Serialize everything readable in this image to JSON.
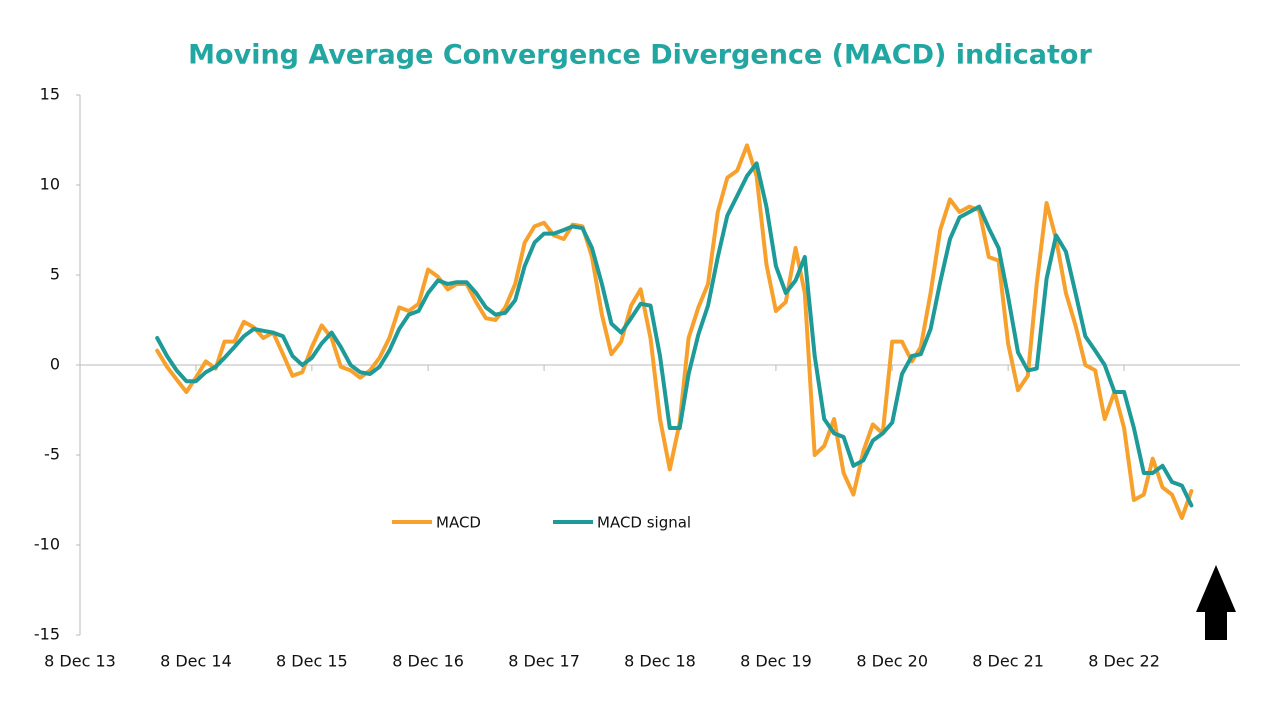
{
  "chart_data": {
    "type": "line",
    "title": "Moving Average Convergence Divergence (MACD) indicator",
    "x": [
      "2014-08-08",
      "2014-09-08",
      "2014-10-08",
      "2014-11-08",
      "2014-12-08",
      "2015-01-08",
      "2015-02-08",
      "2015-03-08",
      "2015-04-08",
      "2015-05-08",
      "2015-06-08",
      "2015-07-08",
      "2015-08-08",
      "2015-09-08",
      "2015-10-08",
      "2015-11-08",
      "2015-12-08",
      "2016-01-08",
      "2016-02-08",
      "2016-03-08",
      "2016-04-08",
      "2016-05-08",
      "2016-06-08",
      "2016-07-08",
      "2016-08-08",
      "2016-09-08",
      "2016-10-08",
      "2016-11-08",
      "2016-12-08",
      "2017-01-08",
      "2017-02-08",
      "2017-03-08",
      "2017-04-08",
      "2017-05-08",
      "2017-06-08",
      "2017-07-08",
      "2017-08-08",
      "2017-09-08",
      "2017-10-08",
      "2017-11-08",
      "2017-12-08",
      "2018-01-08",
      "2018-02-08",
      "2018-03-08",
      "2018-04-08",
      "2018-05-08",
      "2018-06-08",
      "2018-07-08",
      "2018-08-08",
      "2018-09-08",
      "2018-10-08",
      "2018-11-08",
      "2018-12-08",
      "2019-01-08",
      "2019-02-08",
      "2019-03-08",
      "2019-04-08",
      "2019-05-08",
      "2019-06-08",
      "2019-07-08",
      "2019-08-08",
      "2019-09-08",
      "2019-10-08",
      "2019-11-08",
      "2019-12-08",
      "2020-01-08",
      "2020-02-08",
      "2020-03-08",
      "2020-04-08",
      "2020-05-08",
      "2020-06-08",
      "2020-07-08",
      "2020-08-08",
      "2020-09-08",
      "2020-10-08",
      "2020-11-08",
      "2020-12-08",
      "2021-01-08",
      "2021-02-08",
      "2021-03-08",
      "2021-04-08",
      "2021-05-08",
      "2021-06-08",
      "2021-07-08",
      "2021-08-08",
      "2021-09-08",
      "2021-10-08",
      "2021-11-08",
      "2021-12-08",
      "2022-01-08",
      "2022-02-08",
      "2022-03-08",
      "2022-04-08",
      "2022-05-08",
      "2022-06-08",
      "2022-07-08",
      "2022-08-08",
      "2022-09-08",
      "2022-10-08",
      "2022-11-08",
      "2022-12-08",
      "2023-01-08",
      "2023-02-08",
      "2023-03-08",
      "2023-04-08",
      "2023-05-08",
      "2023-06-08",
      "2023-07-08"
    ],
    "series": [
      {
        "name": "MACD",
        "color": "#f7a02c",
        "values": [
          0.8,
          -0.1,
          -0.8,
          -1.5,
          -0.7,
          0.2,
          -0.2,
          1.3,
          1.3,
          2.4,
          2.1,
          1.5,
          1.8,
          0.6,
          -0.6,
          -0.4,
          1.0,
          2.2,
          1.5,
          -0.1,
          -0.3,
          -0.7,
          -0.3,
          0.4,
          1.5,
          3.2,
          3.0,
          3.4,
          5.3,
          4.9,
          4.2,
          4.5,
          4.5,
          3.5,
          2.6,
          2.5,
          3.2,
          4.5,
          6.8,
          7.7,
          7.9,
          7.2,
          7.0,
          7.8,
          7.7,
          6.0,
          2.8,
          0.6,
          1.3,
          3.3,
          4.2,
          1.5,
          -3.0,
          -5.8,
          -3.2,
          1.5,
          3.2,
          4.5,
          8.5,
          10.4,
          10.8,
          12.2,
          10.5,
          5.6,
          3.0,
          3.5,
          6.5,
          4.0,
          -5.0,
          -4.5,
          -3.0,
          -6.0,
          -7.2,
          -4.8,
          -3.3,
          -3.8,
          1.3,
          1.3,
          0.2,
          1.0,
          4.0,
          7.5,
          9.2,
          8.5,
          8.8,
          8.6,
          6.0,
          5.8,
          1.2,
          -1.4,
          -0.6,
          4.5,
          9.0,
          7.0,
          4.0,
          2.2,
          0.0,
          -0.3,
          -3.0,
          -1.5,
          -3.5,
          -7.5,
          -7.2,
          -5.2,
          -6.8,
          -7.2,
          -8.5,
          -7.0
        ]
      },
      {
        "name": "MACD signal",
        "color": "#1e9a98",
        "values": [
          1.5,
          0.5,
          -0.3,
          -0.9,
          -0.9,
          -0.4,
          -0.1,
          0.4,
          1.0,
          1.6,
          2.0,
          1.9,
          1.8,
          1.6,
          0.5,
          0.0,
          0.4,
          1.2,
          1.8,
          1.0,
          0.0,
          -0.4,
          -0.5,
          -0.1,
          0.8,
          2.0,
          2.8,
          3.0,
          4.0,
          4.7,
          4.5,
          4.6,
          4.6,
          4.0,
          3.2,
          2.8,
          2.9,
          3.6,
          5.5,
          6.8,
          7.3,
          7.3,
          7.5,
          7.7,
          7.6,
          6.5,
          4.5,
          2.3,
          1.8,
          2.6,
          3.4,
          3.3,
          0.5,
          -3.5,
          -3.5,
          -0.5,
          1.7,
          3.3,
          6.0,
          8.3,
          9.4,
          10.5,
          11.2,
          8.8,
          5.5,
          4.0,
          4.7,
          6.0,
          0.5,
          -3.0,
          -3.8,
          -4.0,
          -5.6,
          -5.3,
          -4.2,
          -3.8,
          -3.2,
          -0.5,
          0.5,
          0.6,
          2.0,
          4.6,
          7.0,
          8.2,
          8.5,
          8.8,
          7.6,
          6.5,
          3.8,
          0.7,
          -0.3,
          -0.2,
          4.8,
          7.2,
          6.3,
          4.0,
          1.6,
          0.8,
          0.0,
          -1.5,
          -1.5,
          -3.5,
          -6.0,
          -6.0,
          -5.6,
          -6.5,
          -6.7,
          -7.8
        ]
      }
    ],
    "xlim": [
      "2013-12-08",
      "2023-12-08"
    ],
    "xticks": [
      {
        "value": "2013-12-08",
        "label": "8 Dec 13"
      },
      {
        "value": "2014-12-08",
        "label": "8 Dec 14"
      },
      {
        "value": "2015-12-08",
        "label": "8 Dec 15"
      },
      {
        "value": "2016-12-08",
        "label": "8 Dec 16"
      },
      {
        "value": "2017-12-08",
        "label": "8 Dec 17"
      },
      {
        "value": "2018-12-08",
        "label": "8 Dec 18"
      },
      {
        "value": "2019-12-08",
        "label": "8 Dec 19"
      },
      {
        "value": "2020-12-08",
        "label": "8 Dec 20"
      },
      {
        "value": "2021-12-08",
        "label": "8 Dec 21"
      },
      {
        "value": "2022-12-08",
        "label": "8 Dec 22"
      }
    ],
    "ylim": [
      -15,
      15
    ],
    "yticks": [
      -15,
      -10,
      -5,
      0,
      5,
      10,
      15
    ],
    "grid": false
  }
}
